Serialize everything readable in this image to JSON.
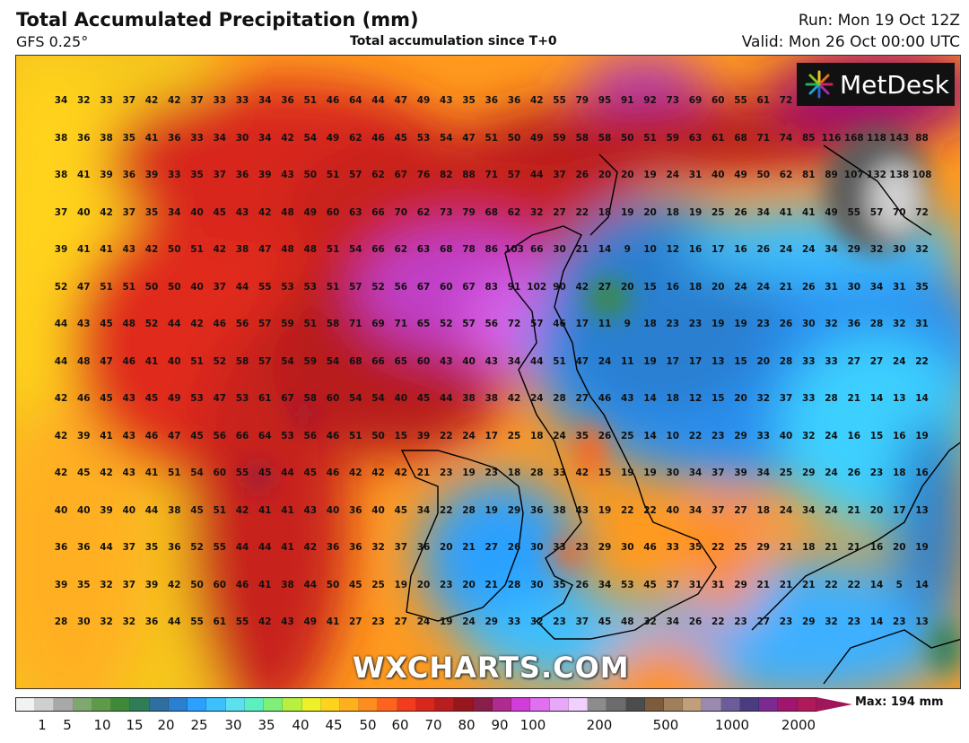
{
  "header": {
    "title": "Total Accumulated Precipitation (mm)",
    "model": "GFS 0.25°",
    "subtitle": "Total accumulation since T+0",
    "run": "Run: Mon 19 Oct 12Z",
    "valid": "Valid: Mon 26 Oct 00:00 UTC"
  },
  "logo": {
    "text": "MetDesk",
    "icon": "metdesk-starburst-icon"
  },
  "watermark": "WXCHARTS.COM",
  "grid_values": [
    [
      "34",
      "32",
      "33",
      "37",
      "42",
      "42",
      "37",
      "33",
      "33",
      "34",
      "36",
      "51",
      "46",
      "64",
      "44",
      "47",
      "49",
      "43",
      "35",
      "36",
      "36",
      "42",
      "55",
      "79",
      "95",
      "91",
      "92",
      "73",
      "69",
      "60",
      "55",
      "61",
      "72",
      "",
      "",
      "",
      "",
      ""
    ],
    [
      "38",
      "36",
      "38",
      "35",
      "41",
      "36",
      "33",
      "34",
      "30",
      "34",
      "42",
      "54",
      "49",
      "62",
      "46",
      "45",
      "53",
      "54",
      "47",
      "51",
      "50",
      "49",
      "59",
      "58",
      "58",
      "50",
      "51",
      "59",
      "63",
      "61",
      "68",
      "71",
      "74",
      "85",
      "116",
      "168",
      "118",
      "143",
      "88"
    ],
    [
      "38",
      "41",
      "39",
      "36",
      "39",
      "33",
      "35",
      "37",
      "36",
      "39",
      "43",
      "50",
      "51",
      "57",
      "62",
      "67",
      "76",
      "82",
      "88",
      "71",
      "57",
      "44",
      "37",
      "26",
      "20",
      "20",
      "19",
      "24",
      "31",
      "40",
      "49",
      "50",
      "62",
      "81",
      "89",
      "107",
      "132",
      "138",
      "108"
    ],
    [
      "37",
      "40",
      "42",
      "37",
      "35",
      "34",
      "40",
      "45",
      "43",
      "42",
      "48",
      "49",
      "60",
      "63",
      "66",
      "70",
      "62",
      "73",
      "79",
      "68",
      "62",
      "32",
      "27",
      "22",
      "18",
      "19",
      "20",
      "18",
      "19",
      "25",
      "26",
      "34",
      "41",
      "41",
      "49",
      "55",
      "57",
      "70",
      "72"
    ],
    [
      "39",
      "41",
      "41",
      "43",
      "42",
      "50",
      "51",
      "42",
      "38",
      "47",
      "48",
      "48",
      "51",
      "54",
      "66",
      "62",
      "63",
      "68",
      "78",
      "86",
      "103",
      "66",
      "30",
      "21",
      "14",
      "9",
      "10",
      "12",
      "16",
      "17",
      "16",
      "26",
      "24",
      "24",
      "34",
      "29",
      "32",
      "30",
      "32"
    ],
    [
      "52",
      "47",
      "51",
      "51",
      "50",
      "50",
      "40",
      "37",
      "44",
      "55",
      "53",
      "53",
      "51",
      "57",
      "52",
      "56",
      "67",
      "60",
      "67",
      "83",
      "91",
      "102",
      "90",
      "42",
      "27",
      "20",
      "15",
      "16",
      "18",
      "20",
      "24",
      "24",
      "21",
      "26",
      "31",
      "30",
      "34",
      "31",
      "35"
    ],
    [
      "44",
      "43",
      "45",
      "48",
      "52",
      "44",
      "42",
      "46",
      "56",
      "57",
      "59",
      "51",
      "58",
      "71",
      "69",
      "71",
      "65",
      "52",
      "57",
      "56",
      "72",
      "57",
      "46",
      "17",
      "11",
      "9",
      "18",
      "23",
      "23",
      "19",
      "19",
      "23",
      "26",
      "30",
      "32",
      "36",
      "28",
      "32",
      "31"
    ],
    [
      "44",
      "48",
      "47",
      "46",
      "41",
      "40",
      "51",
      "52",
      "58",
      "57",
      "54",
      "59",
      "54",
      "68",
      "66",
      "65",
      "60",
      "43",
      "40",
      "43",
      "34",
      "44",
      "51",
      "47",
      "24",
      "11",
      "19",
      "17",
      "17",
      "13",
      "15",
      "20",
      "28",
      "33",
      "33",
      "27",
      "27",
      "24",
      "22"
    ],
    [
      "42",
      "46",
      "45",
      "43",
      "45",
      "49",
      "53",
      "47",
      "53",
      "61",
      "67",
      "58",
      "60",
      "54",
      "54",
      "40",
      "45",
      "44",
      "38",
      "38",
      "42",
      "24",
      "28",
      "27",
      "46",
      "43",
      "14",
      "18",
      "12",
      "15",
      "20",
      "32",
      "37",
      "33",
      "28",
      "21",
      "14",
      "13",
      "14"
    ],
    [
      "42",
      "39",
      "41",
      "43",
      "46",
      "47",
      "45",
      "56",
      "66",
      "64",
      "53",
      "56",
      "46",
      "51",
      "50",
      "15",
      "39",
      "22",
      "24",
      "17",
      "25",
      "18",
      "24",
      "35",
      "26",
      "25",
      "14",
      "10",
      "22",
      "23",
      "29",
      "33",
      "40",
      "32",
      "24",
      "16",
      "15",
      "16",
      "19"
    ],
    [
      "42",
      "45",
      "42",
      "43",
      "41",
      "51",
      "54",
      "60",
      "55",
      "45",
      "44",
      "45",
      "46",
      "42",
      "42",
      "42",
      "21",
      "23",
      "19",
      "23",
      "18",
      "28",
      "33",
      "42",
      "15",
      "19",
      "19",
      "30",
      "34",
      "37",
      "39",
      "34",
      "25",
      "29",
      "24",
      "26",
      "23",
      "18",
      "16"
    ],
    [
      "40",
      "40",
      "39",
      "40",
      "44",
      "38",
      "45",
      "51",
      "42",
      "41",
      "41",
      "43",
      "40",
      "36",
      "40",
      "45",
      "34",
      "22",
      "28",
      "19",
      "29",
      "36",
      "38",
      "43",
      "19",
      "22",
      "22",
      "40",
      "34",
      "37",
      "27",
      "18",
      "24",
      "34",
      "24",
      "21",
      "20",
      "17",
      "13"
    ],
    [
      "36",
      "36",
      "44",
      "37",
      "35",
      "36",
      "52",
      "55",
      "44",
      "44",
      "41",
      "42",
      "36",
      "36",
      "32",
      "37",
      "36",
      "20",
      "21",
      "27",
      "26",
      "30",
      "33",
      "23",
      "29",
      "30",
      "46",
      "33",
      "35",
      "22",
      "25",
      "29",
      "21",
      "18",
      "21",
      "21",
      "16",
      "20",
      "19"
    ],
    [
      "39",
      "35",
      "32",
      "37",
      "39",
      "42",
      "50",
      "60",
      "46",
      "41",
      "38",
      "44",
      "50",
      "45",
      "25",
      "19",
      "20",
      "23",
      "20",
      "21",
      "28",
      "30",
      "35",
      "26",
      "34",
      "53",
      "45",
      "37",
      "31",
      "31",
      "29",
      "21",
      "21",
      "21",
      "22",
      "22",
      "14",
      "5",
      "14"
    ],
    [
      "28",
      "30",
      "32",
      "32",
      "36",
      "44",
      "55",
      "61",
      "55",
      "42",
      "43",
      "49",
      "41",
      "27",
      "23",
      "27",
      "24",
      "19",
      "24",
      "29",
      "33",
      "32",
      "23",
      "37",
      "45",
      "48",
      "32",
      "34",
      "26",
      "22",
      "23",
      "27",
      "23",
      "29",
      "32",
      "23",
      "14",
      "23",
      "13"
    ]
  ],
  "colorbar": {
    "ticks": [
      "1",
      "5",
      "10",
      "15",
      "20",
      "25",
      "30",
      "35",
      "40",
      "45",
      "50",
      "60",
      "70",
      "80",
      "90",
      "100",
      "200",
      "500",
      "1000",
      "2000"
    ],
    "max_label": "Max: 194 mm",
    "colors": [
      "#f2f2f2",
      "#cfcfcf",
      "#a8a8a8",
      "#7fa86f",
      "#5d9a4a",
      "#3f8a3a",
      "#2f7d57",
      "#2f6fa0",
      "#2a7fd0",
      "#2aa0ff",
      "#3cc0ff",
      "#5ce0f0",
      "#5cf0c0",
      "#7ef07a",
      "#b8f040",
      "#eef02a",
      "#ffd21e",
      "#ffb020",
      "#ff8c1e",
      "#ff641e",
      "#f23c1e",
      "#d8281e",
      "#b81e1e",
      "#98161e",
      "#8a1e4a",
      "#b02a90",
      "#d23cd8",
      "#e070f0",
      "#e8a8f8",
      "#f0d0fc",
      "#8c8c8c",
      "#6c6c6c",
      "#4c4c4c",
      "#7c5c3c",
      "#a0805a",
      "#c0a07a",
      "#9a8ab0",
      "#6c5c9a",
      "#4a3c80",
      "#7a2a90",
      "#a0166e",
      "#b01a5a"
    ]
  }
}
